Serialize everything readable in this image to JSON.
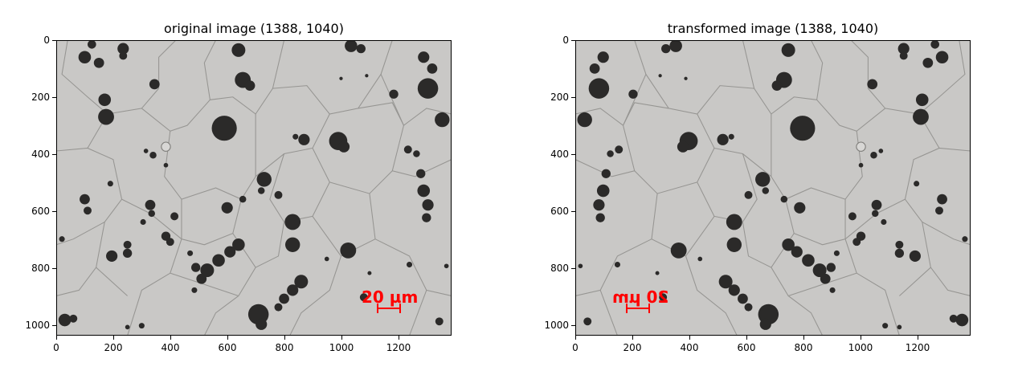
{
  "panels": [
    {
      "id": "left",
      "title": "original image (1388, 1040)",
      "scale_bar_label": "20 µm",
      "mirrored": false
    },
    {
      "id": "right",
      "title": "transformed image (1388, 1040)",
      "scale_bar_label": "20 µm",
      "mirrored": true
    }
  ],
  "axes": {
    "x_ticks": [
      "0",
      "200",
      "400",
      "600",
      "800",
      "1000",
      "1200"
    ],
    "y_ticks": [
      "0",
      "200",
      "400",
      "600",
      "800",
      "1000"
    ],
    "xlim": [
      0,
      1388
    ],
    "ylim": [
      1040,
      0
    ]
  },
  "colors": {
    "background": "#c7c6c4",
    "blob": "#2b2a29",
    "scale_bar": "#ff0000"
  }
}
